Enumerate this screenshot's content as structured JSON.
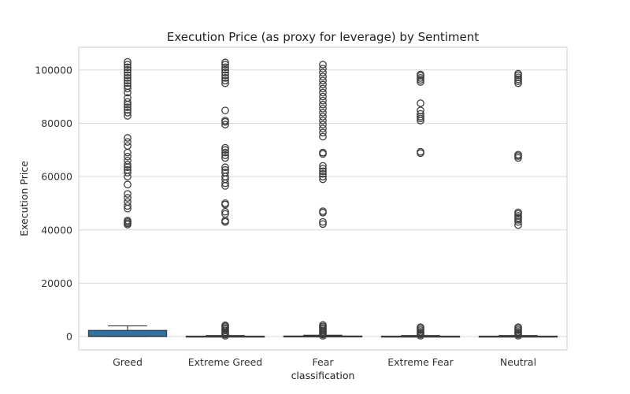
{
  "chart_data": {
    "type": "box",
    "title": "Execution Price (as proxy for leverage) by Sentiment",
    "xlabel": "classification",
    "ylabel": "Execution Price",
    "ylim": [
      -5000,
      108500
    ],
    "yticks": [
      0,
      20000,
      40000,
      60000,
      80000,
      100000
    ],
    "ytick_labels": [
      "0",
      "20000",
      "40000",
      "60000",
      "80000",
      "100000"
    ],
    "grid": true,
    "legend": "none",
    "box_color": "#2e73a6",
    "categories": [
      "Greed",
      "Extreme Greed",
      "Fear",
      "Extreme Fear",
      "Neutral"
    ],
    "boxes": [
      {
        "category": "Greed",
        "min": 0,
        "q1": 0,
        "median": 80,
        "q3": 2300,
        "max": 4000,
        "outliers": [
          42000,
          42500,
          43000,
          43500,
          48000,
          49000,
          50500,
          52000,
          53500,
          57000,
          60000,
          61500,
          62500,
          63500,
          64500,
          66000,
          67500,
          69000,
          71500,
          73000,
          74500,
          82800,
          84000,
          85000,
          86000,
          87000,
          88000,
          89500,
          91500,
          93000,
          94000,
          95000,
          96000,
          97000,
          98000,
          99000,
          100000,
          101000,
          102000,
          103000
        ]
      },
      {
        "category": "Extreme Greed",
        "min": 0,
        "q1": 20,
        "median": 60,
        "q3": 150,
        "max": 400,
        "outliers": [
          300,
          800,
          1200,
          1700,
          2300,
          2800,
          3300,
          3800,
          4200,
          43000,
          43500,
          46000,
          46800,
          49500,
          50000,
          56500,
          57500,
          59000,
          60000,
          61500,
          62500,
          63500,
          67000,
          68000,
          69000,
          70000,
          70800,
          79500,
          80500,
          81000,
          84800,
          95000,
          96000,
          97000,
          98000,
          99000,
          100000,
          101000,
          102000,
          102800
        ]
      },
      {
        "category": "Fear",
        "min": 0,
        "q1": 20,
        "median": 80,
        "q3": 200,
        "max": 500,
        "outliers": [
          300,
          800,
          1300,
          1800,
          2300,
          2800,
          3300,
          3800,
          4300,
          42200,
          43000,
          46500,
          47000,
          59000,
          60000,
          61000,
          62000,
          63000,
          64000,
          68500,
          69000,
          75000,
          76500,
          78000,
          79500,
          81000,
          82500,
          84000,
          85500,
          87000,
          88500,
          90000,
          91500,
          93000,
          94500,
          96000,
          97500,
          99000,
          100500,
          102000
        ]
      },
      {
        "category": "Extreme Fear",
        "min": 0,
        "q1": 20,
        "median": 60,
        "q3": 150,
        "max": 400,
        "outliers": [
          300,
          800,
          1300,
          1800,
          2400,
          3000,
          3500,
          68800,
          69300,
          81000,
          81800,
          82500,
          83500,
          84800,
          87500,
          95500,
          96300,
          97000,
          97800,
          98300
        ]
      },
      {
        "category": "Neutral",
        "min": 0,
        "q1": 20,
        "median": 60,
        "q3": 150,
        "max": 400,
        "outliers": [
          300,
          800,
          1300,
          1800,
          2400,
          3000,
          3500,
          41800,
          43000,
          43800,
          44500,
          45200,
          46000,
          46600,
          67000,
          67700,
          68200,
          95000,
          95800,
          96500,
          97200,
          98000,
          98600
        ]
      }
    ]
  }
}
